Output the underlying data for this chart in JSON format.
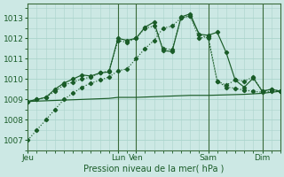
{
  "background_color": "#cce8e4",
  "grid_color": "#aad4cc",
  "line_color": "#1a5c28",
  "xlabel": "Pression niveau de la mer( hPa )",
  "ylim": [
    1006.5,
    1013.7
  ],
  "yticks": [
    1007,
    1008,
    1009,
    1010,
    1011,
    1012,
    1013
  ],
  "xlim": [
    0,
    28
  ],
  "xtick_positions": [
    0,
    10,
    12,
    20,
    26
  ],
  "xtick_labels": [
    "Jeu",
    "Lun",
    "Ven",
    "Sam",
    "Dim"
  ],
  "vlines": [
    10,
    12,
    20,
    26
  ],
  "series1": {
    "x": [
      0,
      1,
      2,
      3,
      4,
      5,
      6,
      7,
      8,
      9,
      10,
      11,
      12,
      13,
      14,
      15,
      16,
      17,
      18,
      19,
      20,
      21,
      22,
      23,
      24,
      25,
      26,
      27,
      28
    ],
    "y": [
      1008.9,
      1009.0,
      1009.1,
      1009.5,
      1009.8,
      1010.0,
      1010.2,
      1010.15,
      1010.3,
      1010.35,
      1012.0,
      1011.9,
      1012.0,
      1012.55,
      1012.8,
      1011.4,
      1011.35,
      1013.05,
      1013.2,
      1012.2,
      1012.15,
      1012.3,
      1011.3,
      1009.95,
      1009.6,
      1010.05,
      1009.4,
      1009.5,
      1009.4
    ]
  },
  "series2": {
    "x": [
      0,
      1,
      2,
      3,
      4,
      5,
      6,
      7,
      8,
      9,
      10,
      11,
      12,
      13,
      14,
      15,
      16,
      17,
      18,
      19,
      20,
      21,
      22,
      23,
      24,
      25,
      26,
      27,
      28
    ],
    "y": [
      1008.9,
      1009.0,
      1009.1,
      1009.4,
      1009.7,
      1009.85,
      1010.0,
      1010.1,
      1010.3,
      1010.4,
      1011.9,
      1011.8,
      1012.0,
      1012.5,
      1012.6,
      1011.5,
      1011.45,
      1013.0,
      1013.1,
      1012.0,
      1012.1,
      1009.9,
      1009.6,
      1009.55,
      1009.45,
      1009.4,
      1009.35,
      1009.4,
      1009.4
    ]
  },
  "series3": {
    "x": [
      0,
      3,
      6,
      9,
      10,
      12,
      15,
      18,
      20,
      24,
      26,
      28
    ],
    "y": [
      1008.9,
      1008.95,
      1009.0,
      1009.05,
      1009.1,
      1009.1,
      1009.15,
      1009.2,
      1009.2,
      1009.25,
      1009.3,
      1009.4
    ]
  },
  "series4": {
    "x": [
      0,
      1,
      2,
      3,
      4,
      5,
      6,
      7,
      8,
      9,
      10,
      11,
      12,
      13,
      14,
      15,
      16,
      17,
      18,
      19,
      20,
      21,
      22,
      23,
      24,
      25,
      26,
      27,
      28
    ],
    "y": [
      1007.0,
      1007.5,
      1008.0,
      1008.5,
      1009.0,
      1009.3,
      1009.6,
      1009.8,
      1009.95,
      1010.1,
      1010.4,
      1010.5,
      1011.0,
      1011.5,
      1011.9,
      1012.5,
      1012.6,
      1013.0,
      1013.1,
      1012.2,
      1012.0,
      1009.9,
      1009.7,
      1009.95,
      1009.9,
      1010.1,
      1009.4,
      1009.5,
      1009.4
    ]
  }
}
